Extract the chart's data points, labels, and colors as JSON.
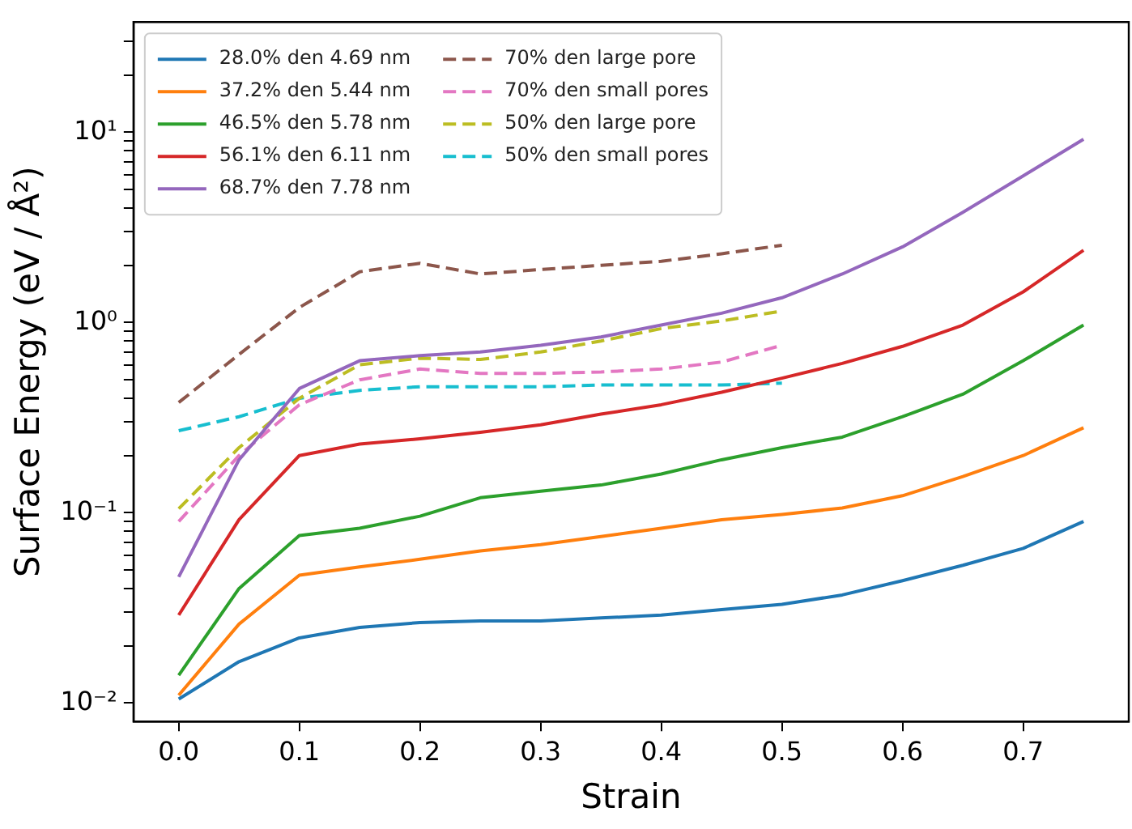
{
  "chart_data": {
    "type": "line",
    "xlabel": "Strain",
    "ylabel": "Surface Energy (eV / Å²)",
    "log": "y",
    "grid": false,
    "legend": "top left",
    "marker": "none",
    "line_style": "solid",
    "x": [
      0.0,
      0.05,
      0.1,
      0.15,
      0.2,
      0.25,
      0.3,
      0.35,
      0.4,
      0.45,
      0.5,
      0.55,
      0.6,
      0.65,
      0.7,
      0.75
    ],
    "xlim": [
      -0.0375,
      0.7875
    ],
    "xticks": [
      {
        "value": 0,
        "label": "0.0"
      },
      0.1,
      0.2,
      0.3,
      0.4,
      0.5,
      0.6,
      0.7
    ],
    "ylim": [
      0.008,
      38
    ],
    "yticks": [
      {
        "value": 0.01,
        "label": "10⁻²"
      },
      {
        "value": 0.02,
        "label": null
      },
      {
        "value": 0.03,
        "label": null
      },
      {
        "value": 0.04,
        "label": null
      },
      {
        "value": 0.05,
        "label": null
      },
      {
        "value": 0.06,
        "label": null
      },
      {
        "value": 0.07,
        "label": null
      },
      {
        "value": 0.08,
        "label": null
      },
      {
        "value": 0.09,
        "label": null
      },
      {
        "value": 0.1,
        "label": "10⁻¹"
      },
      {
        "value": 0.2,
        "label": null
      },
      {
        "value": 0.3,
        "label": null
      },
      {
        "value": 0.4,
        "label": null
      },
      {
        "value": 0.5,
        "label": null
      },
      {
        "value": 0.6,
        "label": null
      },
      {
        "value": 0.7,
        "label": null
      },
      {
        "value": 0.8,
        "label": null
      },
      {
        "value": 0.9,
        "label": null
      },
      {
        "value": 1,
        "label": "10⁰"
      },
      {
        "value": 2,
        "label": null
      },
      {
        "value": 3,
        "label": null
      },
      {
        "value": 4,
        "label": null
      },
      {
        "value": 5,
        "label": null
      },
      {
        "value": 6,
        "label": null
      },
      {
        "value": 7,
        "label": null
      },
      {
        "value": 8,
        "label": null
      },
      {
        "value": 9,
        "label": null
      },
      {
        "value": 10,
        "label": "10¹"
      },
      {
        "value": 20,
        "label": null
      },
      {
        "value": 30,
        "label": null
      }
    ],
    "series": [
      {
        "name": "28.0% den 4.69 nm",
        "color": "#1f77b4",
        "values": [
          0.0105,
          0.0165,
          0.022,
          0.025,
          0.0265,
          0.027,
          0.027,
          0.028,
          0.029,
          0.031,
          0.033,
          0.037,
          0.044,
          0.053,
          0.065,
          0.09
        ]
      },
      {
        "name": "37.2% den 5.44 nm",
        "color": "#ff7f0e",
        "values": [
          0.011,
          0.026,
          0.047,
          0.052,
          0.057,
          0.063,
          0.068,
          0.075,
          0.083,
          0.092,
          0.098,
          0.106,
          0.123,
          0.155,
          0.2,
          0.28
        ]
      },
      {
        "name": "46.5% den 5.78 nm",
        "color": "#2ca02c",
        "values": [
          0.014,
          0.04,
          0.076,
          0.083,
          0.096,
          0.12,
          0.13,
          0.14,
          0.16,
          0.19,
          0.22,
          0.25,
          0.32,
          0.42,
          0.63,
          0.97
        ]
      },
      {
        "name": "56.1% den 6.11 nm",
        "color": "#d62728",
        "values": [
          0.029,
          0.092,
          0.2,
          0.23,
          0.245,
          0.265,
          0.29,
          0.33,
          0.37,
          0.43,
          0.51,
          0.61,
          0.75,
          0.97,
          1.45,
          2.4
        ]
      },
      {
        "name": "68.7% den 7.78 nm",
        "color": "#9467bd",
        "values": [
          0.046,
          0.19,
          0.45,
          0.63,
          0.67,
          0.7,
          0.76,
          0.84,
          0.97,
          1.12,
          1.35,
          1.8,
          2.5,
          3.8,
          5.9,
          9.2
        ]
      },
      {
        "name": "70% den large pore",
        "color": "#8c564b",
        "line_style": "dashed",
        "values": [
          0.38,
          0.68,
          1.2,
          1.85,
          2.05,
          1.8,
          1.9,
          2.0,
          2.1,
          2.3,
          2.55,
          null,
          null,
          null,
          null,
          null
        ]
      },
      {
        "name": "70% den small pores",
        "color": "#e377c2",
        "line_style": "dashed",
        "values": [
          0.09,
          0.2,
          0.37,
          0.5,
          0.57,
          0.54,
          0.54,
          0.55,
          0.57,
          0.62,
          0.76,
          null,
          null,
          null,
          null,
          null
        ]
      },
      {
        "name": "50% den large pore",
        "color": "#bcbd22",
        "line_style": "dashed",
        "values": [
          0.105,
          0.22,
          0.4,
          0.6,
          0.65,
          0.64,
          0.7,
          0.8,
          0.93,
          1.02,
          1.15,
          null,
          null,
          null,
          null,
          null
        ]
      },
      {
        "name": "50% den small pores",
        "color": "#17becf",
        "line_style": "dashed",
        "values": [
          0.27,
          0.32,
          0.4,
          0.44,
          0.46,
          0.46,
          0.46,
          0.47,
          0.47,
          0.47,
          0.48,
          null,
          null,
          null,
          null,
          null
        ]
      }
    ]
  }
}
